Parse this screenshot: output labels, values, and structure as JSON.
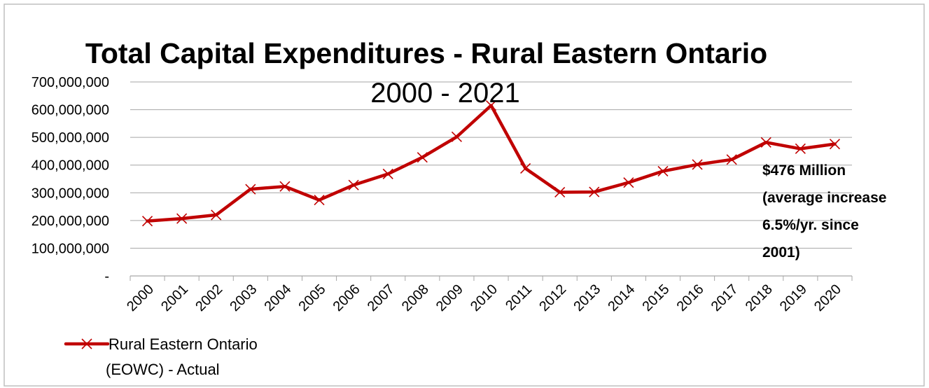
{
  "chart_data": {
    "type": "line",
    "title": "Total Capital Expenditures - Rural Eastern Ontario",
    "subtitle": "2000 - 2021",
    "categories": [
      "2000",
      "2001",
      "2002",
      "2003",
      "2004",
      "2005",
      "2006",
      "2007",
      "2008",
      "2009",
      "2010",
      "2011",
      "2012",
      "2013",
      "2014",
      "2015",
      "2016",
      "2017",
      "2018",
      "2019",
      "2020"
    ],
    "series": [
      {
        "name": "Rural Eastern Ontario (EOWC) - Actual",
        "color": "#c00000",
        "marker": "x",
        "values": [
          198000000,
          207000000,
          220000000,
          313000000,
          323000000,
          274000000,
          328000000,
          368000000,
          428000000,
          502000000,
          615000000,
          388000000,
          302000000,
          303000000,
          337000000,
          378000000,
          402000000,
          420000000,
          482000000,
          459000000,
          476000000
        ]
      }
    ],
    "y_ticks": [
      "-",
      "100,000,000",
      "200,000,000",
      "300,000,000",
      "400,000,000",
      "500,000,000",
      "600,000,000",
      "700,000,000"
    ],
    "ylim": [
      0,
      700000000
    ],
    "grid": true,
    "legend": "bottom-left",
    "legend_lines": [
      "Rural Eastern Ontario",
      "(EOWC) - Actual"
    ],
    "annotation": [
      "$476 Million",
      "(average increase",
      "6.5%/yr. since",
      "2001)"
    ]
  }
}
